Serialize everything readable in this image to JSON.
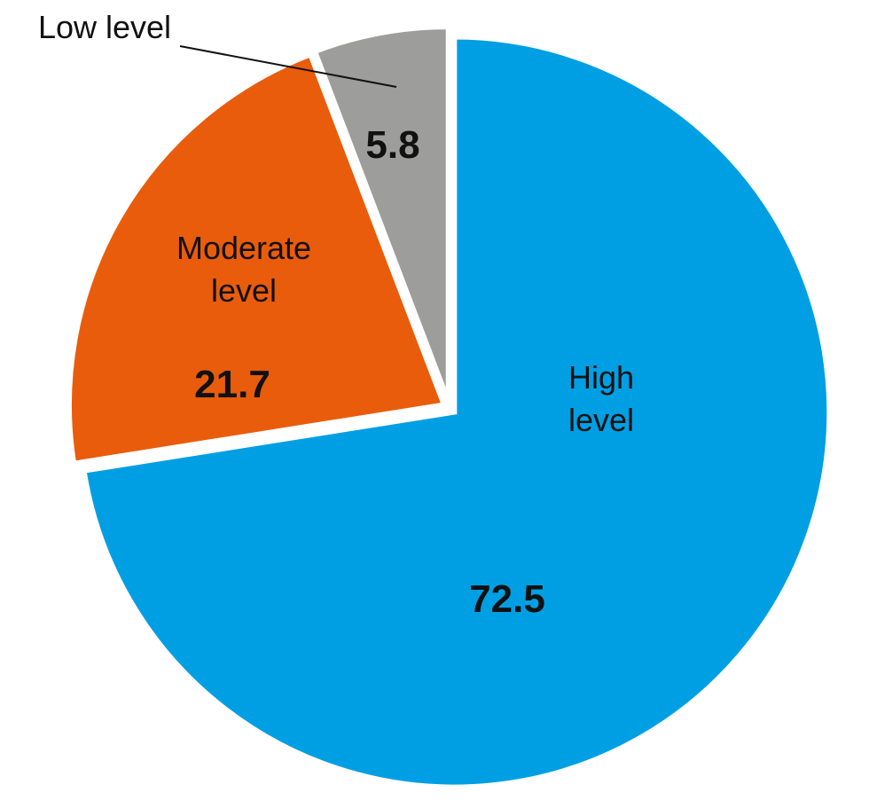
{
  "chart_data": {
    "type": "pie",
    "title": "",
    "slices": [
      {
        "label": "High level",
        "label_lines": [
          "High",
          "level"
        ],
        "value": 72.5,
        "value_label": "72.5",
        "color": "#009fe3"
      },
      {
        "label": "Moderate level",
        "label_lines": [
          "Moderate",
          "level"
        ],
        "value": 21.7,
        "value_label": "21.7",
        "color": "#e95c0c"
      },
      {
        "label": "Low level",
        "label_lines": [
          "Low level"
        ],
        "value": 5.8,
        "value_label": "5.8",
        "color": "#9d9d9c"
      }
    ],
    "start_angle_deg": 0,
    "direction": "clockwise",
    "separator_color": "#ffffff",
    "outside_label_slices": [
      "Low level"
    ]
  }
}
